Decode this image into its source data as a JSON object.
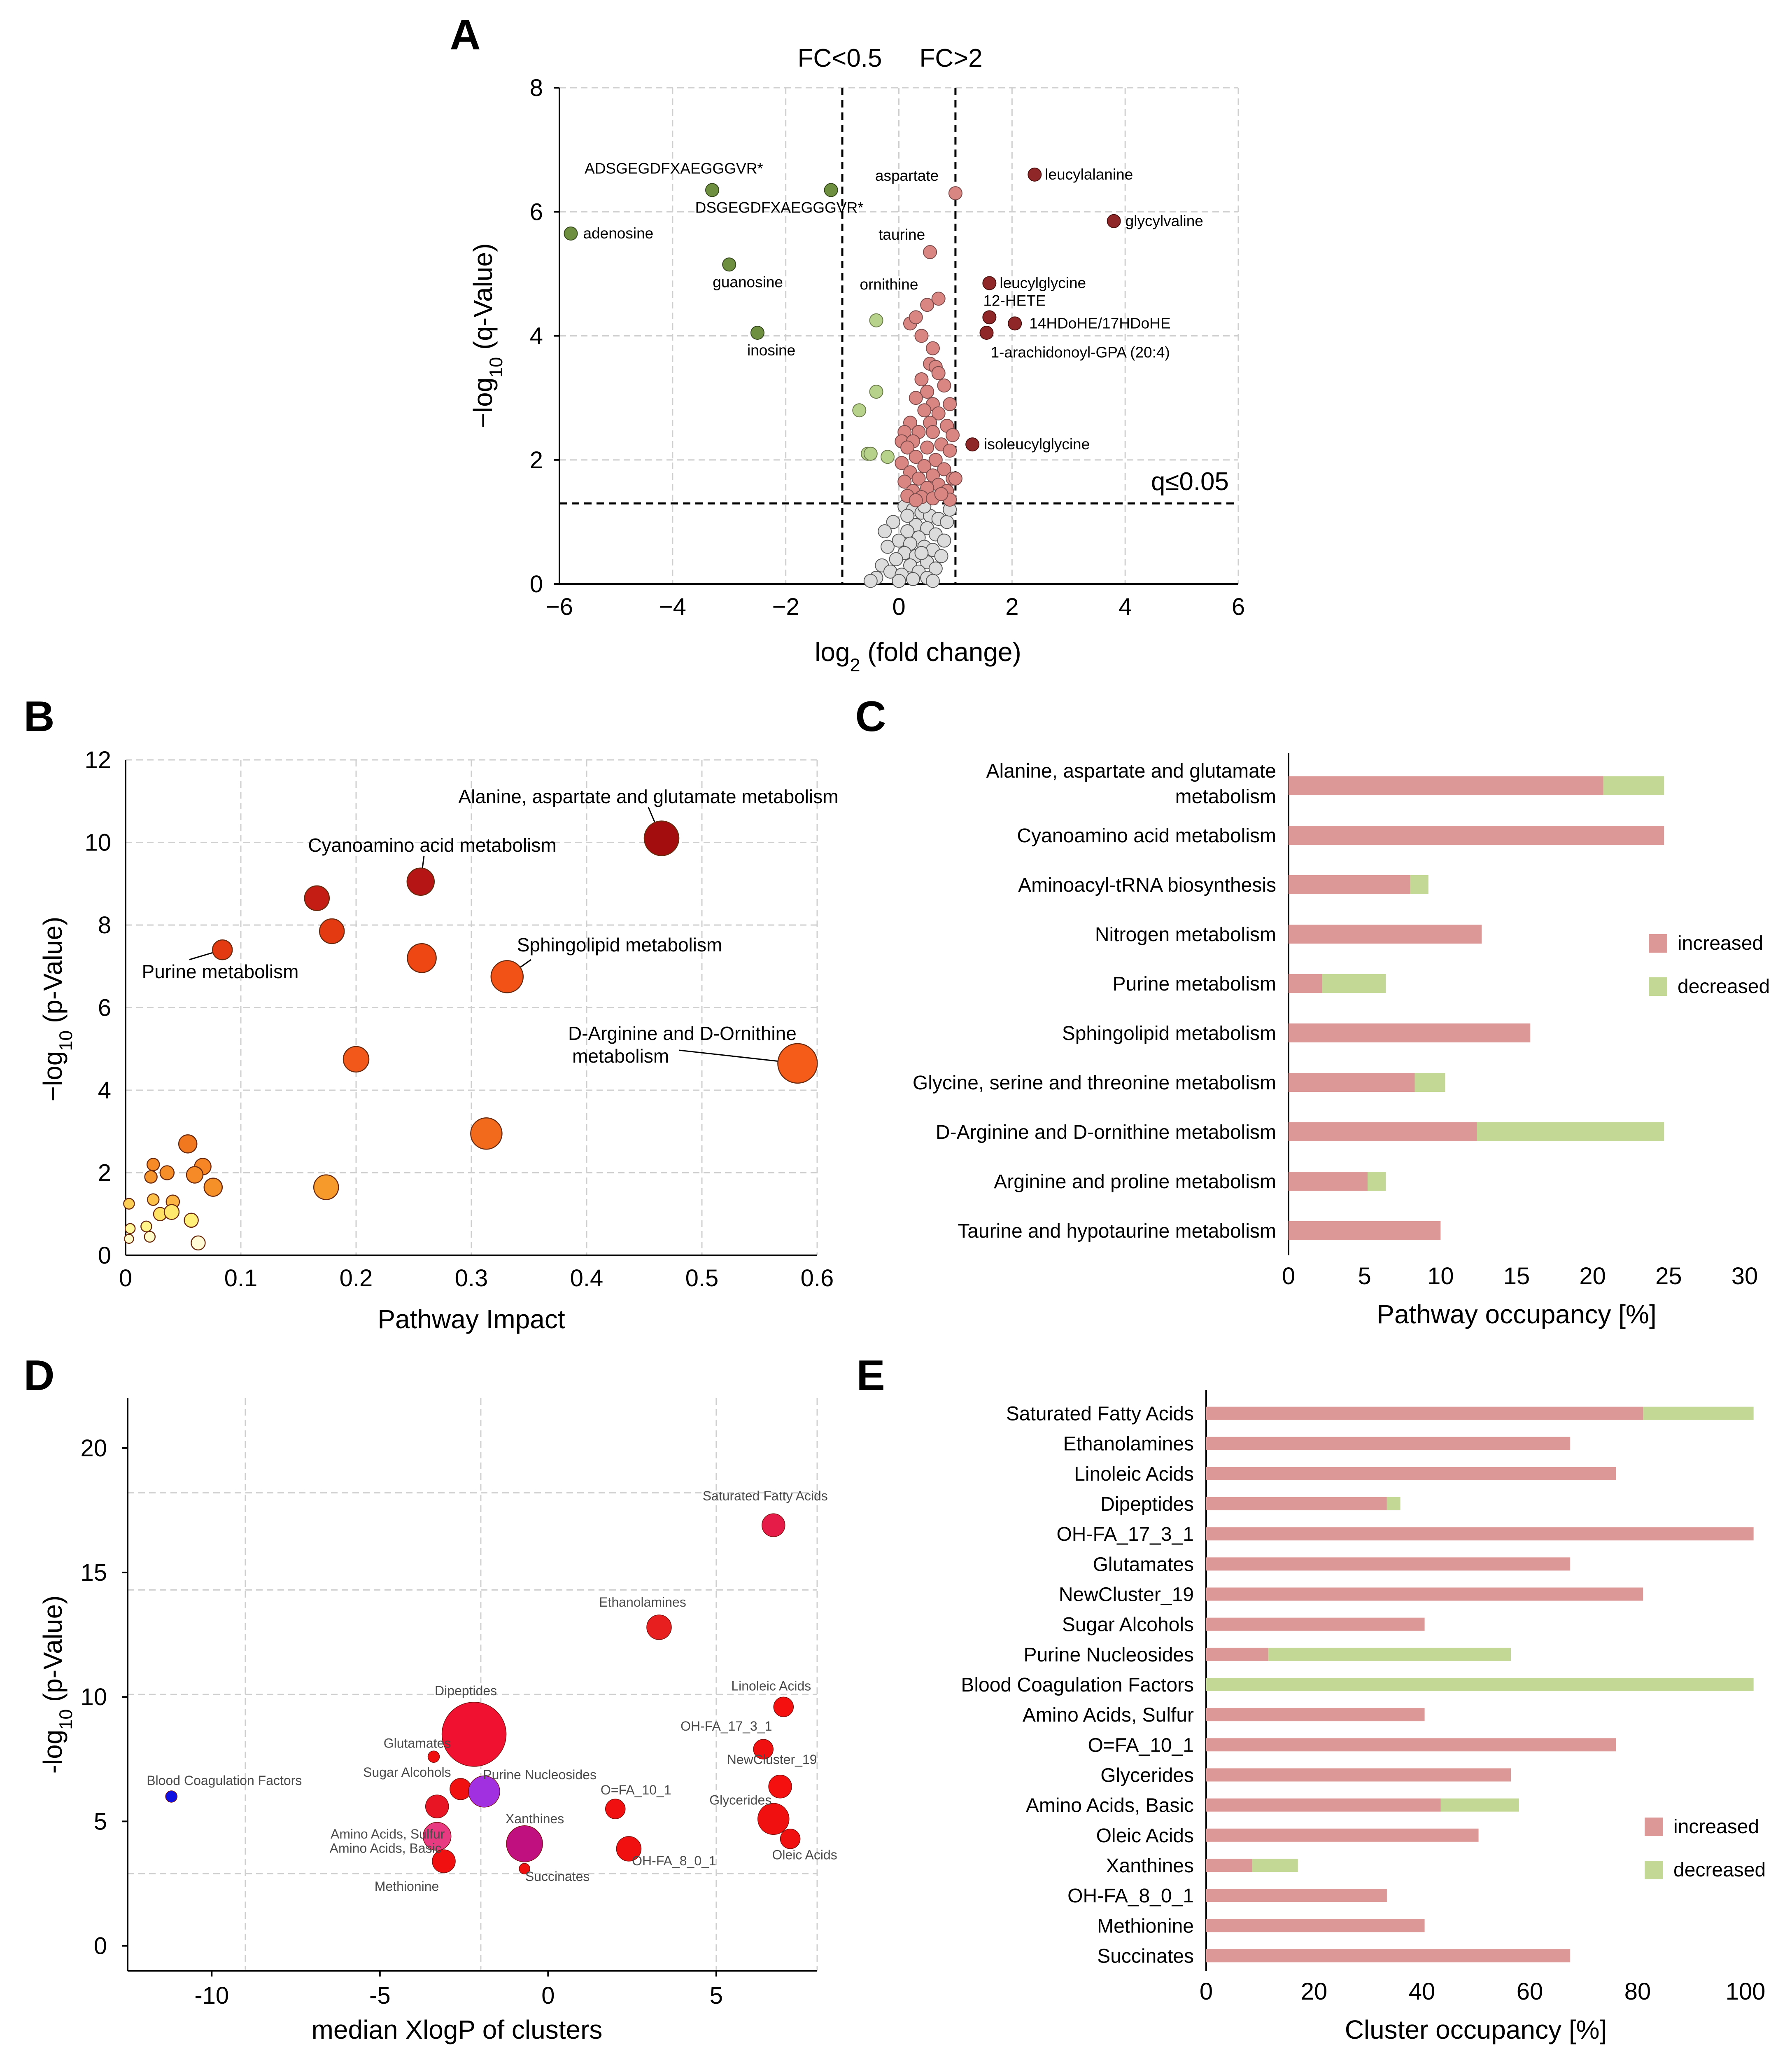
{
  "colors": {
    "increased": "#dc9896",
    "decreased": "#c3d894",
    "sig_up": "#d98683",
    "up_dark": "#8f2627",
    "down_dark": "#6e8e40",
    "down_light": "#b7d38b",
    "ns": "#dcdcdc"
  },
  "chart_data": [
    {
      "panel": "A",
      "type": "scatter",
      "title": "",
      "xlabel": "log2 (fold change)",
      "ylabel": "−log10 (q-Value)",
      "xlim": [
        -6,
        6
      ],
      "ylim": [
        0,
        8
      ],
      "xticks": [
        "−6",
        "−4",
        "−2",
        "0",
        "2",
        "4",
        "6"
      ],
      "yticks": [
        "0",
        "2",
        "4",
        "6",
        "8"
      ],
      "thresholds": {
        "fc_low_label": "FC<0.5",
        "fc_high_label": "FC>2",
        "fc_low": -1,
        "fc_high": 1,
        "q_label": "q≤0.05",
        "q": 1.3
      },
      "labeled_points": [
        {
          "name": "ADSGEGDFXAEGGGVR*",
          "x": -3.3,
          "y": 6.35,
          "class": "down"
        },
        {
          "name": "DSGEGDFXAEGGGVR*",
          "x": -1.2,
          "y": 6.35,
          "class": "down"
        },
        {
          "name": "adenosine",
          "x": -5.8,
          "y": 5.65,
          "class": "down"
        },
        {
          "name": "guanosine",
          "x": -3.0,
          "y": 5.15,
          "class": "down"
        },
        {
          "name": "inosine",
          "x": -2.5,
          "y": 4.05,
          "class": "down"
        },
        {
          "name": "aspartate",
          "x": 1.0,
          "y": 6.3,
          "class": "up_light"
        },
        {
          "name": "taurine",
          "x": 0.55,
          "y": 5.35,
          "class": "up_light"
        },
        {
          "name": "ornithine",
          "x": -0.4,
          "y": 4.25,
          "class": "down_light"
        },
        {
          "name": "leucylalanine",
          "x": 2.4,
          "y": 6.6,
          "class": "up"
        },
        {
          "name": "glycylvaline",
          "x": 3.8,
          "y": 5.85,
          "class": "up"
        },
        {
          "name": "leucylglycine",
          "x": 1.6,
          "y": 4.85,
          "class": "up"
        },
        {
          "name": "12-HETE",
          "x": 1.6,
          "y": 4.3,
          "class": "up"
        },
        {
          "name": "14HDoHE/17HDoHE",
          "x": 2.05,
          "y": 4.2,
          "class": "up"
        },
        {
          "name": "1-arachidonoyl-GPA (20:4)",
          "x": 1.55,
          "y": 4.05,
          "class": "up"
        },
        {
          "name": "isoleucylglycine",
          "x": 1.3,
          "y": 2.25,
          "class": "up"
        }
      ],
      "unlabeled_up": [
        [
          0.2,
          4.2
        ],
        [
          0.3,
          4.3
        ],
        [
          0.5,
          4.5
        ],
        [
          0.7,
          4.6
        ],
        [
          0.4,
          4.0
        ],
        [
          0.6,
          3.8
        ],
        [
          0.55,
          3.55
        ],
        [
          0.65,
          3.5
        ],
        [
          0.7,
          3.4
        ],
        [
          0.4,
          3.3
        ],
        [
          0.8,
          3.2
        ],
        [
          0.5,
          3.1
        ],
        [
          0.3,
          3.0
        ],
        [
          0.6,
          2.9
        ],
        [
          0.9,
          2.9
        ],
        [
          0.45,
          2.8
        ],
        [
          0.7,
          2.75
        ],
        [
          0.2,
          2.6
        ],
        [
          0.55,
          2.6
        ],
        [
          0.85,
          2.55
        ],
        [
          0.1,
          2.45
        ],
        [
          0.35,
          2.45
        ],
        [
          0.6,
          2.45
        ],
        [
          0.95,
          2.4
        ],
        [
          0.05,
          2.3
        ],
        [
          0.25,
          2.3
        ],
        [
          0.75,
          2.25
        ],
        [
          0.15,
          2.2
        ],
        [
          0.5,
          2.2
        ],
        [
          0.9,
          2.15
        ],
        [
          0.3,
          2.05
        ],
        [
          0.65,
          2.0
        ],
        [
          0.05,
          1.95
        ],
        [
          0.45,
          1.9
        ],
        [
          0.8,
          1.85
        ],
        [
          0.2,
          1.8
        ],
        [
          0.6,
          1.75
        ],
        [
          0.95,
          1.7
        ],
        [
          0.35,
          1.7
        ],
        [
          0.1,
          1.65
        ],
        [
          0.7,
          1.6
        ],
        [
          0.5,
          1.55
        ],
        [
          0.25,
          1.5
        ],
        [
          0.85,
          1.5
        ],
        [
          0.15,
          1.42
        ],
        [
          0.4,
          1.4
        ],
        [
          0.6,
          1.38
        ],
        [
          0.9,
          1.36
        ],
        [
          0.3,
          1.35
        ],
        [
          1.0,
          1.7
        ],
        [
          0.75,
          1.45
        ]
      ],
      "unlabeled_down": [
        [
          -0.4,
          3.1
        ],
        [
          -0.7,
          2.8
        ],
        [
          -0.55,
          2.1
        ],
        [
          -0.2,
          2.05
        ],
        [
          -0.5,
          2.1
        ]
      ],
      "not_significant": [
        [
          0.1,
          1.25
        ],
        [
          0.25,
          1.2
        ],
        [
          0.4,
          1.15
        ],
        [
          0.55,
          1.1
        ],
        [
          0.7,
          1.05
        ],
        [
          0.85,
          1.0
        ],
        [
          -0.1,
          1.0
        ],
        [
          0.3,
          0.95
        ],
        [
          0.5,
          0.9
        ],
        [
          0.15,
          0.85
        ],
        [
          0.65,
          0.8
        ],
        [
          0.35,
          0.75
        ],
        [
          0.0,
          0.7
        ],
        [
          0.8,
          0.7
        ],
        [
          0.2,
          0.65
        ],
        [
          0.45,
          0.6
        ],
        [
          -0.2,
          0.6
        ],
        [
          0.6,
          0.55
        ],
        [
          0.1,
          0.5
        ],
        [
          0.3,
          0.45
        ],
        [
          0.75,
          0.45
        ],
        [
          -0.05,
          0.4
        ],
        [
          0.5,
          0.35
        ],
        [
          0.2,
          0.3
        ],
        [
          -0.3,
          0.3
        ],
        [
          0.65,
          0.25
        ],
        [
          0.35,
          0.2
        ],
        [
          -0.15,
          0.2
        ],
        [
          0.05,
          0.15
        ],
        [
          0.5,
          0.1
        ],
        [
          -0.4,
          0.1
        ],
        [
          0.25,
          0.08
        ],
        [
          0.15,
          1.1
        ],
        [
          0.45,
          1.25
        ],
        [
          0.9,
          1.2
        ],
        [
          -0.25,
          0.85
        ],
        [
          0.4,
          0.5
        ],
        [
          0.0,
          0.05
        ],
        [
          0.6,
          0.05
        ],
        [
          -0.5,
          0.05
        ]
      ]
    },
    {
      "panel": "B",
      "type": "scatter",
      "xlabel": "Pathway Impact",
      "ylabel": "−log10 (p-Value)",
      "xlim": [
        0,
        0.6
      ],
      "ylim": [
        0,
        12
      ],
      "xticks": [
        "0",
        "0.1",
        "0.2",
        "0.3",
        "0.4",
        "0.5",
        "0.6"
      ],
      "yticks": [
        "0",
        "2",
        "4",
        "6",
        "8",
        "10",
        "12"
      ],
      "points": [
        {
          "x": 0.465,
          "y": 10.1,
          "r": 42,
          "color": "#a30d0d",
          "label": "Alanine, aspartate and glutamate metabolism"
        },
        {
          "x": 0.256,
          "y": 9.05,
          "r": 33,
          "color": "#b51515",
          "label": "Cyanoamino acid metabolism"
        },
        {
          "x": 0.166,
          "y": 8.65,
          "r": 30,
          "color": "#c31d14",
          "label": ""
        },
        {
          "x": 0.179,
          "y": 7.85,
          "r": 30,
          "color": "#e33a12",
          "label": ""
        },
        {
          "x": 0.084,
          "y": 7.4,
          "r": 24,
          "color": "#e33a12",
          "label": "Purine metabolism"
        },
        {
          "x": 0.257,
          "y": 7.2,
          "r": 35,
          "color": "#ee4714",
          "label": ""
        },
        {
          "x": 0.331,
          "y": 6.75,
          "r": 39,
          "color": "#f25216",
          "label": "Sphingolipid metabolism"
        },
        {
          "x": 0.583,
          "y": 4.65,
          "r": 48,
          "color": "#f65c19",
          "label": "D-Arginine and D-Ornithine metabolism"
        },
        {
          "x": 0.2,
          "y": 4.75,
          "r": 31,
          "color": "#f2581a",
          "label": ""
        },
        {
          "x": 0.313,
          "y": 2.95,
          "r": 38,
          "color": "#f26a1c",
          "label": ""
        },
        {
          "x": 0.174,
          "y": 1.65,
          "r": 30,
          "color": "#f69a2c",
          "label": ""
        },
        {
          "x": 0.054,
          "y": 2.7,
          "r": 22,
          "color": "#f2781f",
          "label": ""
        },
        {
          "x": 0.067,
          "y": 2.15,
          "r": 20,
          "color": "#f58525",
          "label": ""
        },
        {
          "x": 0.06,
          "y": 1.95,
          "r": 20,
          "color": "#f58a27",
          "label": ""
        },
        {
          "x": 0.076,
          "y": 1.65,
          "r": 22,
          "color": "#f59029",
          "label": ""
        },
        {
          "x": 0.024,
          "y": 2.2,
          "r": 15,
          "color": "#f58a27",
          "label": ""
        },
        {
          "x": 0.022,
          "y": 1.9,
          "r": 15,
          "color": "#f5942d",
          "label": ""
        },
        {
          "x": 0.036,
          "y": 2.0,
          "r": 17,
          "color": "#f58d28",
          "label": ""
        },
        {
          "x": 0.024,
          "y": 1.35,
          "r": 14,
          "color": "#fbc04a",
          "label": ""
        },
        {
          "x": 0.041,
          "y": 1.3,
          "r": 16,
          "color": "#fbb442",
          "label": ""
        },
        {
          "x": 0.03,
          "y": 1.0,
          "r": 16,
          "color": "#fde264",
          "label": ""
        },
        {
          "x": 0.04,
          "y": 1.05,
          "r": 18,
          "color": "#fee96e",
          "label": ""
        },
        {
          "x": 0.057,
          "y": 0.85,
          "r": 17,
          "color": "#fff07a",
          "label": ""
        },
        {
          "x": 0.018,
          "y": 0.7,
          "r": 13,
          "color": "#fff58a",
          "label": ""
        },
        {
          "x": 0.003,
          "y": 1.25,
          "r": 13,
          "color": "#fbcf57",
          "label": ""
        },
        {
          "x": 0.004,
          "y": 0.65,
          "r": 12,
          "color": "#fff79a",
          "label": ""
        },
        {
          "x": 0.003,
          "y": 0.4,
          "r": 11,
          "color": "#fffbc8",
          "label": ""
        },
        {
          "x": 0.021,
          "y": 0.45,
          "r": 13,
          "color": "#fffbc8",
          "label": ""
        },
        {
          "x": 0.063,
          "y": 0.3,
          "r": 17,
          "color": "#fffbd6",
          "label": ""
        }
      ]
    },
    {
      "panel": "C",
      "type": "bar",
      "orientation": "horizontal",
      "stacked": true,
      "xlabel": "Pathway occupancy [%]",
      "xlim": [
        0,
        30
      ],
      "xticks": [
        "0",
        "5",
        "10",
        "15",
        "20",
        "25",
        "30"
      ],
      "categories": [
        "Alanine, aspartate and glutamate metabolism",
        "Cyanoamino acid metabolism",
        "Aminoacyl-tRNA biosynthesis",
        "Nitrogen metabolism",
        "Purine metabolism",
        "Sphingolipid metabolism",
        "Glycine, serine and threonine metabolism",
        "D-Arginine and D-ornithine metabolism",
        "Arginine and proline metabolism",
        "Taurine and hypotaurine metabolism"
      ],
      "series": [
        {
          "name": "increased",
          "values": [
            20.7,
            24.7,
            8.0,
            12.7,
            2.2,
            15.9,
            8.3,
            12.4,
            5.2,
            10.0
          ]
        },
        {
          "name": "decreased",
          "values": [
            4.0,
            0,
            1.2,
            0,
            4.2,
            0,
            2.0,
            12.3,
            1.2,
            0
          ]
        }
      ],
      "legend": [
        "increased",
        "decreased"
      ]
    },
    {
      "panel": "D",
      "type": "scatter",
      "xlabel": "median XlogP of clusters",
      "ylabel": "-log10 (p-Value)",
      "xlim": [
        -12.5,
        8
      ],
      "ylim": [
        -1,
        22
      ],
      "xticks": [
        "-10",
        "-5",
        "0",
        "5"
      ],
      "yticks": [
        "0",
        "5",
        "10",
        "15",
        "20"
      ],
      "points": [
        {
          "x": 6.7,
          "y": 16.9,
          "r": 28,
          "color": "#e61c48",
          "label": "Saturated Fatty Acids"
        },
        {
          "x": 3.3,
          "y": 12.8,
          "r": 30,
          "color": "#e81f1f",
          "label": "Ethanolamines"
        },
        {
          "x": 7.0,
          "y": 9.6,
          "r": 24,
          "color": "#f51010",
          "label": "Linoleic Acids"
        },
        {
          "x": -2.2,
          "y": 8.5,
          "r": 78,
          "color": "#f01030",
          "label": "Dipeptides"
        },
        {
          "x": 6.4,
          "y": 7.9,
          "r": 24,
          "color": "#f01010",
          "label": "OH-FA_17_3_1"
        },
        {
          "x": -3.4,
          "y": 7.6,
          "r": 14,
          "color": "#f01010",
          "label": "Glutamates"
        },
        {
          "x": 6.9,
          "y": 6.4,
          "r": 28,
          "color": "#f51010",
          "label": "NewCluster_19"
        },
        {
          "x": -2.6,
          "y": 6.3,
          "r": 26,
          "color": "#f01010",
          "label": "Sugar Alcohols"
        },
        {
          "x": -1.9,
          "y": 6.2,
          "r": 38,
          "color": "#a030e0",
          "label": "Purine Nucleosides"
        },
        {
          "x": -11.2,
          "y": 6.0,
          "r": 14,
          "color": "#1010e0",
          "label": "Blood Coagulation Factors"
        },
        {
          "x": 2.0,
          "y": 5.5,
          "r": 24,
          "color": "#f01010",
          "label": "O=FA_10_1"
        },
        {
          "x": -3.3,
          "y": 5.6,
          "r": 28,
          "color": "#e81525",
          "label": "Amino Acids, Sulfur"
        },
        {
          "x": 6.7,
          "y": 5.1,
          "r": 38,
          "color": "#f01010",
          "label": "Glycerides"
        },
        {
          "x": -3.3,
          "y": 4.4,
          "r": 34,
          "color": "#e83a80",
          "label": "Amino Acids, Basic"
        },
        {
          "x": -0.7,
          "y": 4.1,
          "r": 44,
          "color": "#c01080",
          "label": "Xanthines"
        },
        {
          "x": 7.2,
          "y": 4.3,
          "r": 24,
          "color": "#f01010",
          "label": "Oleic Acids"
        },
        {
          "x": 2.4,
          "y": 3.9,
          "r": 30,
          "color": "#f01010",
          "label": "OH-FA_8_0_1"
        },
        {
          "x": -3.1,
          "y": 3.4,
          "r": 28,
          "color": "#f01010",
          "label": "Methionine"
        },
        {
          "x": -0.7,
          "y": 3.1,
          "r": 13,
          "color": "#f01010",
          "label": "Succinates"
        }
      ]
    },
    {
      "panel": "E",
      "type": "bar",
      "orientation": "horizontal",
      "stacked": true,
      "xlabel": "Cluster occupancy [%]",
      "xlim": [
        0,
        100
      ],
      "xticks": [
        "0",
        "20",
        "40",
        "60",
        "80",
        "100"
      ],
      "categories": [
        "Saturated Fatty Acids",
        "Ethanolamines",
        "Linoleic Acids",
        "Dipeptides",
        "OH-FA_17_3_1",
        "Glutamates",
        "NewCluster_19",
        "Sugar Alcohols",
        "Purine Nucleosides",
        "Blood Coagulation Factors",
        "Amino Acids, Sulfur",
        "O=FA_10_1",
        "Glycerides",
        "Amino Acids, Basic",
        "Oleic Acids",
        "Xanthines",
        "OH-FA_8_0_1",
        "Methionine",
        "Succinates"
      ],
      "series": [
        {
          "name": "increased",
          "values": [
            81,
            67.5,
            76,
            33.5,
            101.5,
            67.5,
            81,
            40.5,
            11.5,
            0,
            40.5,
            76,
            56.5,
            43.5,
            50.5,
            8.5,
            33.5,
            40.5,
            67.5
          ]
        },
        {
          "name": "decreased",
          "values": [
            20.5,
            0,
            0,
            2.5,
            0,
            0,
            0,
            0,
            45,
            101.5,
            0,
            0,
            0,
            14.5,
            0,
            8.5,
            0,
            0,
            0
          ]
        }
      ],
      "legend": [
        "increased",
        "decreased"
      ]
    }
  ],
  "panel_letters": [
    "A",
    "B",
    "C",
    "D",
    "E"
  ]
}
